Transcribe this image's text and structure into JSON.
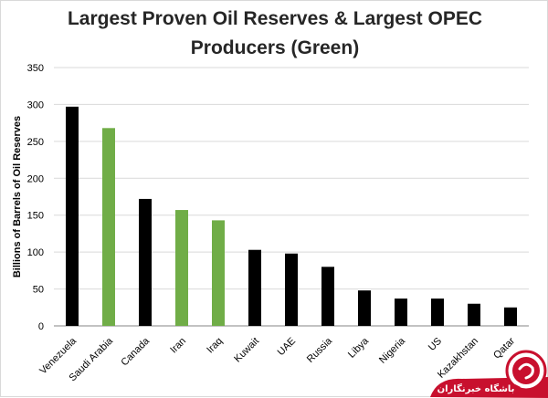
{
  "chart_data": {
    "type": "bar",
    "title_lines": [
      "Largest Proven Oil Reserves & Largest OPEC",
      "Producers (Green)"
    ],
    "xlabel": "",
    "ylabel": "Billions of Barrels of Oil Reserves",
    "ylim": [
      0,
      350
    ],
    "yticks": [
      0,
      50,
      100,
      150,
      200,
      250,
      300,
      350
    ],
    "grid": true,
    "categories": [
      "Venezuela",
      "Saudi Arabia",
      "Canada",
      "Iran",
      "Iraq",
      "Kuwait",
      "UAE",
      "Russia",
      "Libya",
      "Nigeria",
      "US",
      "Kazakhstan",
      "Qatar"
    ],
    "values": [
      297,
      268,
      172,
      157,
      143,
      103,
      98,
      80,
      48,
      37,
      37,
      30,
      25
    ],
    "bar_colors": [
      "#000000",
      "#70ad47",
      "#000000",
      "#70ad47",
      "#70ad47",
      "#000000",
      "#000000",
      "#000000",
      "#000000",
      "#000000",
      "#000000",
      "#000000",
      "#000000"
    ]
  },
  "watermark": {
    "text": "باشگاه خبرنگاران",
    "color": "#c8102e",
    "icon": "chat-bubble-logo-icon"
  }
}
